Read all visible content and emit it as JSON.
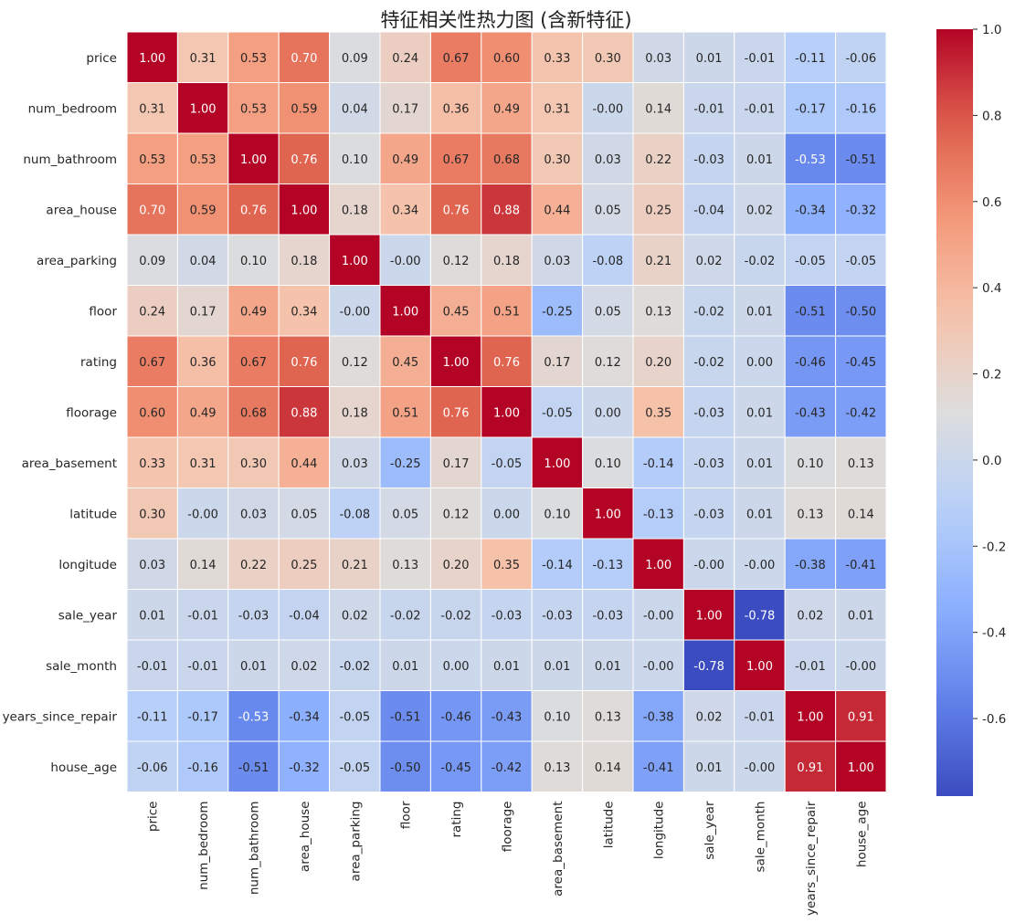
{
  "chart_data": {
    "type": "heatmap",
    "title": "特征相关性热力图 (含新特征)",
    "xlabel": "",
    "ylabel": "",
    "labels": [
      "price",
      "num_bedroom",
      "num_bathroom",
      "area_house",
      "area_parking",
      "floor",
      "rating",
      "floorage",
      "area_basement",
      "latitude",
      "longitude",
      "sale_year",
      "sale_month",
      "years_since_repair",
      "house_age"
    ],
    "matrix": [
      [
        1.0,
        0.31,
        0.53,
        0.7,
        0.09,
        0.24,
        0.67,
        0.6,
        0.33,
        0.3,
        0.03,
        0.01,
        -0.01,
        -0.11,
        -0.06
      ],
      [
        0.31,
        1.0,
        0.53,
        0.59,
        0.04,
        0.17,
        0.36,
        0.49,
        0.31,
        -0.0,
        0.14,
        -0.01,
        -0.01,
        -0.17,
        -0.16
      ],
      [
        0.53,
        0.53,
        1.0,
        0.76,
        0.1,
        0.49,
        0.67,
        0.68,
        0.3,
        0.03,
        0.22,
        -0.03,
        0.01,
        -0.53,
        -0.51
      ],
      [
        0.7,
        0.59,
        0.76,
        1.0,
        0.18,
        0.34,
        0.76,
        0.88,
        0.44,
        0.05,
        0.25,
        -0.04,
        0.02,
        -0.34,
        -0.32
      ],
      [
        0.09,
        0.04,
        0.1,
        0.18,
        1.0,
        -0.0,
        0.12,
        0.18,
        0.03,
        -0.08,
        0.21,
        0.02,
        -0.02,
        -0.05,
        -0.05
      ],
      [
        0.24,
        0.17,
        0.49,
        0.34,
        -0.0,
        1.0,
        0.45,
        0.51,
        -0.25,
        0.05,
        0.13,
        -0.02,
        0.01,
        -0.51,
        -0.5
      ],
      [
        0.67,
        0.36,
        0.67,
        0.76,
        0.12,
        0.45,
        1.0,
        0.76,
        0.17,
        0.12,
        0.2,
        -0.02,
        0.0,
        -0.46,
        -0.45
      ],
      [
        0.6,
        0.49,
        0.68,
        0.88,
        0.18,
        0.51,
        0.76,
        1.0,
        -0.05,
        0.0,
        0.35,
        -0.03,
        0.01,
        -0.43,
        -0.42
      ],
      [
        0.33,
        0.31,
        0.3,
        0.44,
        0.03,
        -0.25,
        0.17,
        -0.05,
        1.0,
        0.1,
        -0.14,
        -0.03,
        0.01,
        0.1,
        0.13
      ],
      [
        0.3,
        -0.0,
        0.03,
        0.05,
        -0.08,
        0.05,
        0.12,
        0.0,
        0.1,
        1.0,
        -0.13,
        -0.03,
        0.01,
        0.13,
        0.14
      ],
      [
        0.03,
        0.14,
        0.22,
        0.25,
        0.21,
        0.13,
        0.2,
        0.35,
        -0.14,
        -0.13,
        1.0,
        -0.0,
        -0.0,
        -0.38,
        -0.41
      ],
      [
        0.01,
        -0.01,
        -0.03,
        -0.04,
        0.02,
        -0.02,
        -0.02,
        -0.03,
        -0.03,
        -0.03,
        -0.0,
        1.0,
        -0.78,
        0.02,
        0.01
      ],
      [
        -0.01,
        -0.01,
        0.01,
        0.02,
        -0.02,
        0.01,
        0.0,
        0.01,
        0.01,
        0.01,
        -0.0,
        -0.78,
        1.0,
        -0.01,
        -0.0
      ],
      [
        -0.11,
        -0.17,
        -0.53,
        -0.34,
        -0.05,
        -0.51,
        -0.46,
        -0.43,
        0.1,
        0.13,
        -0.38,
        0.02,
        -0.01,
        1.0,
        0.91
      ],
      [
        -0.06,
        -0.16,
        -0.51,
        -0.32,
        -0.05,
        -0.5,
        -0.45,
        -0.42,
        0.13,
        0.14,
        -0.41,
        0.01,
        -0.0,
        0.91,
        1.0
      ]
    ],
    "value_format": "2 decimals",
    "colormap": "coolwarm",
    "vmin": -0.78,
    "vmax": 1.0,
    "colorbar": {
      "ticks": [
        1.0,
        0.8,
        0.6,
        0.4,
        0.2,
        0.0,
        -0.2,
        -0.4,
        -0.6
      ],
      "tick_labels": [
        "1.0",
        "0.8",
        "0.6",
        "0.4",
        "0.2",
        "0.0",
        "-0.2",
        "-0.4",
        "-0.6"
      ],
      "placement": "right"
    },
    "grid": false
  }
}
